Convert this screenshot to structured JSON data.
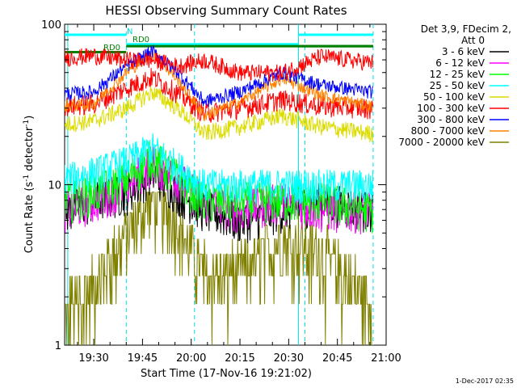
{
  "chart_data": {
    "type": "line",
    "title": "HESSI Observing Summary Count Rates",
    "xlabel": "Start Time (17-Nov-16 19:21:02)",
    "ylabel_main": "Count Rate (s",
    "ylabel_sup": "-1",
    "ylabel_tail": " detector",
    "ylabel_end": ")",
    "yscale": "log",
    "ylim": [
      1,
      100
    ],
    "xlim_minutes": [
      "19:21",
      "21:00"
    ],
    "x_tick_labels": [
      "19:30",
      "19:45",
      "20:00",
      "20:15",
      "20:30",
      "20:45",
      "21:00"
    ],
    "x_ticks_minutes_after_1900": [
      30,
      45,
      60,
      75,
      90,
      105,
      120
    ],
    "y_tick_labels": [
      "1",
      "10",
      "100"
    ],
    "legend_header_1": "Det 3,9, FDecim 2,",
    "legend_header_2": "Att 0",
    "legend_position": "right",
    "footer_timestamp": "1-Dec-2017 02:35",
    "annotations": {
      "n_label": "N",
      "rd0_label_1": "RD0",
      "rd0_label_2": "RD0"
    },
    "series": [
      {
        "name": "3 - 6 keV",
        "color": "#000000",
        "values": [
          7,
          8,
          9,
          12,
          9,
          7,
          6,
          7,
          8,
          7
        ]
      },
      {
        "name": "6 - 12 keV",
        "color": "#ff00ff",
        "values": [
          7,
          8,
          10,
          14,
          11,
          8,
          7,
          8,
          7,
          7
        ]
      },
      {
        "name": "12 - 25 keV",
        "color": "#00ff00",
        "values": [
          8,
          9,
          11,
          15,
          11,
          8,
          8,
          8,
          8,
          7
        ]
      },
      {
        "name": "25 - 50 keV",
        "color": "#00ffff",
        "values": [
          11,
          12,
          14,
          17,
          13,
          10,
          10,
          10,
          10,
          10
        ]
      },
      {
        "name": "50 - 100 keV",
        "color": "#dcdc00",
        "values": [
          24,
          25,
          30,
          38,
          30,
          21,
          23,
          27,
          23,
          21
        ]
      },
      {
        "name": "100 - 300 keV",
        "color": "#ff0000",
        "values": [
          31,
          32,
          40,
          47,
          37,
          28,
          30,
          34,
          31,
          30
        ]
      },
      {
        "name": "300 - 800 keV",
        "color": "#0000ff",
        "values": [
          37,
          38,
          55,
          68,
          50,
          33,
          38,
          50,
          42,
          38
        ]
      },
      {
        "name": "800 - 7000 keV",
        "color": "#ff8000",
        "values": [
          31,
          32,
          50,
          66,
          45,
          27,
          33,
          46,
          36,
          31
        ]
      },
      {
        "name": "7000 - 20000 keV",
        "color": "#808000",
        "values": [
          1.8,
          2.4,
          5,
          9,
          6,
          3,
          3,
          5,
          4,
          2
        ]
      }
    ],
    "extra_series": [
      {
        "name": "",
        "color": "#ff0000",
        "values": [
          62,
          64,
          60,
          60,
          55,
          60,
          50,
          50,
          63,
          58
        ]
      }
    ],
    "x_minutes_after_1900": [
      22,
      30,
      40,
      48,
      56,
      64,
      75,
      88,
      100,
      115
    ],
    "attenuator_levels": {
      "upper": 86,
      "lower": 75
    },
    "rd0_green_level": 73,
    "cyan_vertical_solid_minutes": [
      22,
      93
    ],
    "cyan_vertical_dashed_minutes": [
      40,
      61,
      95,
      116
    ]
  }
}
